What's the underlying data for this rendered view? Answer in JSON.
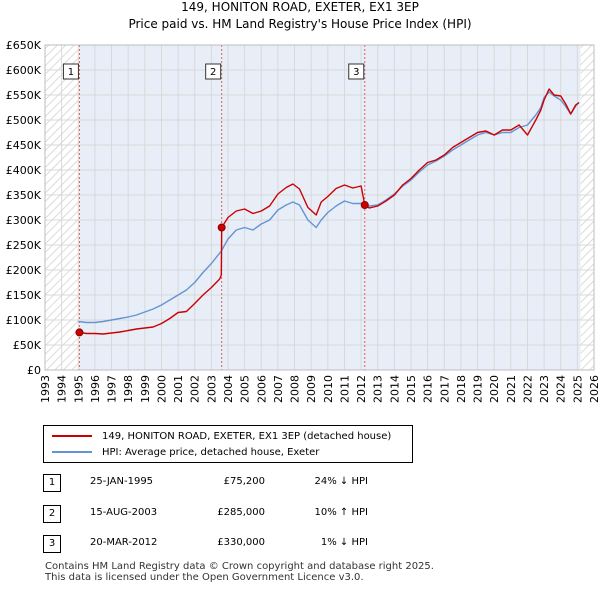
{
  "title_line1": "149, HONITON ROAD, EXETER, EX1 3EP",
  "title_line2": "Price paid vs. HM Land Registry's House Price Index (HPI)",
  "chart_data": {
    "type": "line",
    "title": "149, HONITON ROAD, EXETER, EX1 3EP — Price paid vs. HM Land Registry's House Price Index (HPI)",
    "x_range": [
      1993,
      2026
    ],
    "ylim": [
      0,
      650000
    ],
    "y_ticks": [
      {
        "value": 0,
        "label": "£0"
      },
      {
        "value": 50000,
        "label": "£50K"
      },
      {
        "value": 100000,
        "label": "£100K"
      },
      {
        "value": 150000,
        "label": "£150K"
      },
      {
        "value": 200000,
        "label": "£200K"
      },
      {
        "value": 250000,
        "label": "£250K"
      },
      {
        "value": 300000,
        "label": "£300K"
      },
      {
        "value": 350000,
        "label": "£350K"
      },
      {
        "value": 400000,
        "label": "£400K"
      },
      {
        "value": 450000,
        "label": "£450K"
      },
      {
        "value": 500000,
        "label": "£500K"
      },
      {
        "value": 550000,
        "label": "£550K"
      },
      {
        "value": 600000,
        "label": "£600K"
      },
      {
        "value": 650000,
        "label": "£650K"
      }
    ],
    "x_ticks": [
      "1993",
      "1994",
      "1995",
      "1996",
      "1997",
      "1998",
      "1999",
      "2000",
      "2001",
      "2002",
      "2003",
      "2004",
      "2005",
      "2006",
      "2007",
      "2008",
      "2009",
      "2010",
      "2011",
      "2012",
      "2013",
      "2014",
      "2015",
      "2016",
      "2017",
      "2018",
      "2019",
      "2020",
      "2021",
      "2022",
      "2023",
      "2024",
      "2025",
      "2026"
    ],
    "grid": true,
    "hatched_ranges": [
      [
        1993,
        1995.0
      ],
      [
        2025.2,
        2026
      ]
    ],
    "colors": {
      "property": "#cc0000",
      "hpi": "#6495d2",
      "sale_line": "#e06060",
      "grid": "#d8d8d8",
      "band": "#e8eef8"
    },
    "series": [
      {
        "name": "149, HONITON ROAD, EXETER, EX1 3EP (detached house)",
        "color": "#cc0000",
        "x": [
          1995.07,
          1995.5,
          1996,
          1996.5,
          1997,
          1997.5,
          1998,
          1998.5,
          1999,
          1999.5,
          2000,
          2000.5,
          2001,
          2001.5,
          2002,
          2002.5,
          2003,
          2003.5,
          2003.6,
          2003.62,
          2004,
          2004.5,
          2005,
          2005.5,
          2006,
          2006.5,
          2007,
          2007.5,
          2007.9,
          2008.3,
          2008.8,
          2009.3,
          2009.6,
          2010,
          2010.5,
          2011,
          2011.5,
          2012,
          2012.22,
          2012.5,
          2013,
          2013.5,
          2014,
          2014.5,
          2015,
          2015.5,
          2016,
          2016.5,
          2017,
          2017.5,
          2018,
          2018.5,
          2019,
          2019.5,
          2020,
          2020.5,
          2021,
          2021.5,
          2022,
          2022.5,
          2022.8,
          2023,
          2023.3,
          2023.6,
          2024,
          2024.3,
          2024.6,
          2024.9,
          2025.1
        ],
        "values": [
          75200,
          73000,
          73000,
          72000,
          74000,
          76000,
          79000,
          82000,
          84000,
          86000,
          93000,
          103000,
          115000,
          117000,
          133000,
          150000,
          165000,
          182000,
          190000,
          285000,
          305000,
          318000,
          322000,
          313000,
          318000,
          328000,
          352000,
          365000,
          372000,
          362000,
          325000,
          310000,
          336000,
          347000,
          363000,
          370000,
          364000,
          368000,
          330000,
          324000,
          328000,
          338000,
          350000,
          370000,
          383000,
          400000,
          415000,
          420000,
          430000,
          445000,
          455000,
          465000,
          475000,
          478000,
          470000,
          480000,
          480000,
          490000,
          470000,
          500000,
          520000,
          540000,
          562000,
          550000,
          548000,
          532000,
          512000,
          530000,
          535000
        ]
      },
      {
        "name": "HPI: Average price, detached house, Exeter",
        "color": "#6495d2",
        "x": [
          1995,
          1995.5,
          1996,
          1996.5,
          1997,
          1997.5,
          1998,
          1998.5,
          1999,
          1999.5,
          2000,
          2000.5,
          2001,
          2001.5,
          2002,
          2002.5,
          2003,
          2003.6,
          2004,
          2004.5,
          2005,
          2005.5,
          2006,
          2006.5,
          2007,
          2007.5,
          2007.9,
          2008.3,
          2008.8,
          2009.3,
          2009.6,
          2010,
          2010.5,
          2011,
          2011.5,
          2012,
          2012.22,
          2012.5,
          2013,
          2013.5,
          2014,
          2014.5,
          2015,
          2015.5,
          2016,
          2016.5,
          2017,
          2017.5,
          2018,
          2018.5,
          2019,
          2019.5,
          2020,
          2020.5,
          2021,
          2021.5,
          2022,
          2022.5,
          2022.8,
          2023,
          2023.3,
          2023.6,
          2024,
          2024.3,
          2024.6,
          2024.9,
          2025.1
        ],
        "values": [
          97000,
          95000,
          95000,
          97000,
          100000,
          103000,
          106000,
          110000,
          116000,
          122000,
          130000,
          140000,
          150000,
          160000,
          175000,
          195000,
          213000,
          238000,
          262000,
          280000,
          285000,
          280000,
          292000,
          300000,
          320000,
          330000,
          336000,
          330000,
          300000,
          285000,
          300000,
          315000,
          328000,
          338000,
          333000,
          333000,
          334000,
          328000,
          330000,
          340000,
          352000,
          368000,
          380000,
          396000,
          410000,
          418000,
          428000,
          440000,
          450000,
          460000,
          470000,
          475000,
          470000,
          475000,
          475000,
          485000,
          490000,
          510000,
          525000,
          545000,
          556000,
          548000,
          540000,
          527000,
          512000,
          528000,
          535000
        ]
      }
    ],
    "sale_markers": [
      {
        "id": "1",
        "x": 1995.07,
        "value": 75200
      },
      {
        "id": "2",
        "x": 2003.62,
        "value": 285000
      },
      {
        "id": "3",
        "x": 2012.22,
        "value": 330000
      }
    ]
  },
  "legend": {
    "property_label": "149, HONITON ROAD, EXETER, EX1 3EP (detached house)",
    "hpi_label": "HPI: Average price, detached house, Exeter"
  },
  "sales": [
    {
      "num": "1",
      "date": "25-JAN-1995",
      "price": "£75,200",
      "hpi": "24% ↓ HPI"
    },
    {
      "num": "2",
      "date": "15-AUG-2003",
      "price": "£285,000",
      "hpi": "10% ↑ HPI"
    },
    {
      "num": "3",
      "date": "20-MAR-2012",
      "price": "£330,000",
      "hpi": "1% ↓ HPI"
    }
  ],
  "footer_line1": "Contains HM Land Registry data © Crown copyright and database right 2025.",
  "footer_line2": "This data is licensed under the Open Government Licence v3.0."
}
